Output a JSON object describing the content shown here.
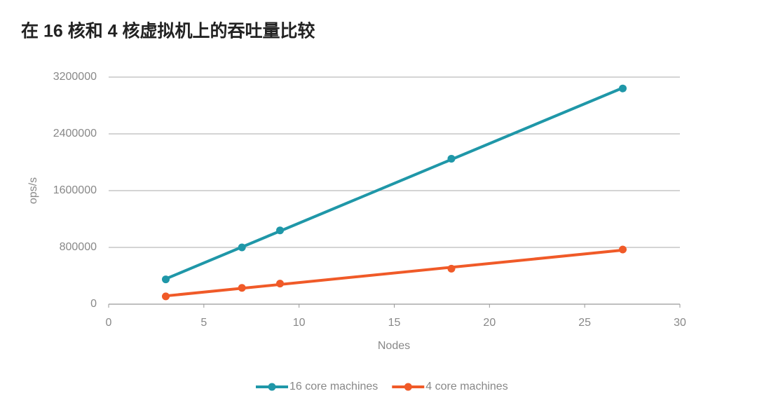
{
  "chart_data": {
    "type": "scatter",
    "title": "在 16 核和 4 核虚拟机上的吞吐量比较",
    "x_label": "Nodes",
    "y_label": "ops/s",
    "x": [
      3,
      7,
      9,
      18,
      27
    ],
    "series": [
      {
        "name": "16 core machines",
        "color": "#1f97a8",
        "values": [
          350000,
          800000,
          1040000,
          2050000,
          3040000
        ]
      },
      {
        "name": "4 core machines",
        "color": "#f05a28",
        "values": [
          110000,
          230000,
          290000,
          500000,
          770000
        ]
      }
    ],
    "xlim": [
      0,
      30
    ],
    "xticks": [
      0,
      5,
      10,
      15,
      20,
      25,
      30
    ],
    "ylim": [
      0,
      3200000
    ],
    "yticks": [
      0,
      800000,
      1600000,
      2400000,
      3200000
    ],
    "grid": true,
    "trendline": true,
    "legend": "bottom"
  }
}
